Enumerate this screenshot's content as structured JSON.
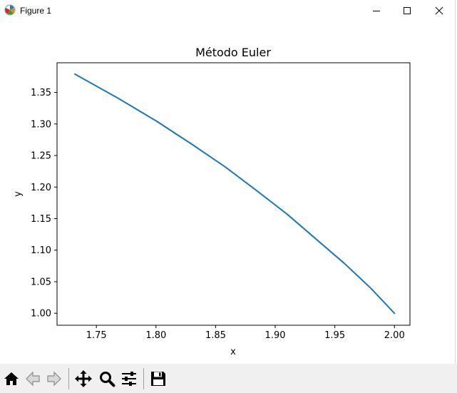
{
  "window": {
    "title": "Figure 1",
    "icon": "matplotlib-icon",
    "controls": [
      "minimize-icon",
      "maximize-icon",
      "close-icon"
    ]
  },
  "toolbar": {
    "buttons": [
      {
        "name": "home-button",
        "icon": "home-icon"
      },
      {
        "name": "back-button",
        "icon": "back-arrow-icon"
      },
      {
        "name": "forward-button",
        "icon": "forward-arrow-icon"
      },
      {
        "name": "pan-button",
        "icon": "move-icon"
      },
      {
        "name": "zoom-button",
        "icon": "magnifier-icon"
      },
      {
        "name": "configure-subplots-button",
        "icon": "sliders-icon"
      },
      {
        "name": "save-button",
        "icon": "floppy-disk-icon"
      }
    ]
  },
  "chart_data": {
    "type": "line",
    "title": "Método Euler",
    "xlabel": "x",
    "ylabel": "y",
    "xlim": [
      1.717,
      2.013
    ],
    "ylim": [
      0.981,
      1.397
    ],
    "xticks": [
      "1.75",
      "1.80",
      "1.85",
      "1.90",
      "1.95",
      "2.00"
    ],
    "xtick_values": [
      1.75,
      1.8,
      1.85,
      1.9,
      1.95,
      2.0
    ],
    "yticks": [
      "1.00",
      "1.05",
      "1.10",
      "1.15",
      "1.20",
      "1.25",
      "1.30",
      "1.35"
    ],
    "ytick_values": [
      1.0,
      1.05,
      1.1,
      1.15,
      1.2,
      1.25,
      1.3,
      1.35
    ],
    "grid": false,
    "color": "#1f77b4",
    "series": [
      {
        "x": [
          2.0,
          1.98,
          1.958,
          1.934,
          1.91,
          1.884,
          1.858,
          1.83,
          1.8,
          1.768,
          1.732
        ],
        "y": [
          1.0,
          1.04,
          1.079,
          1.118,
          1.157,
          1.195,
          1.232,
          1.268,
          1.305,
          1.341,
          1.379
        ]
      }
    ]
  }
}
